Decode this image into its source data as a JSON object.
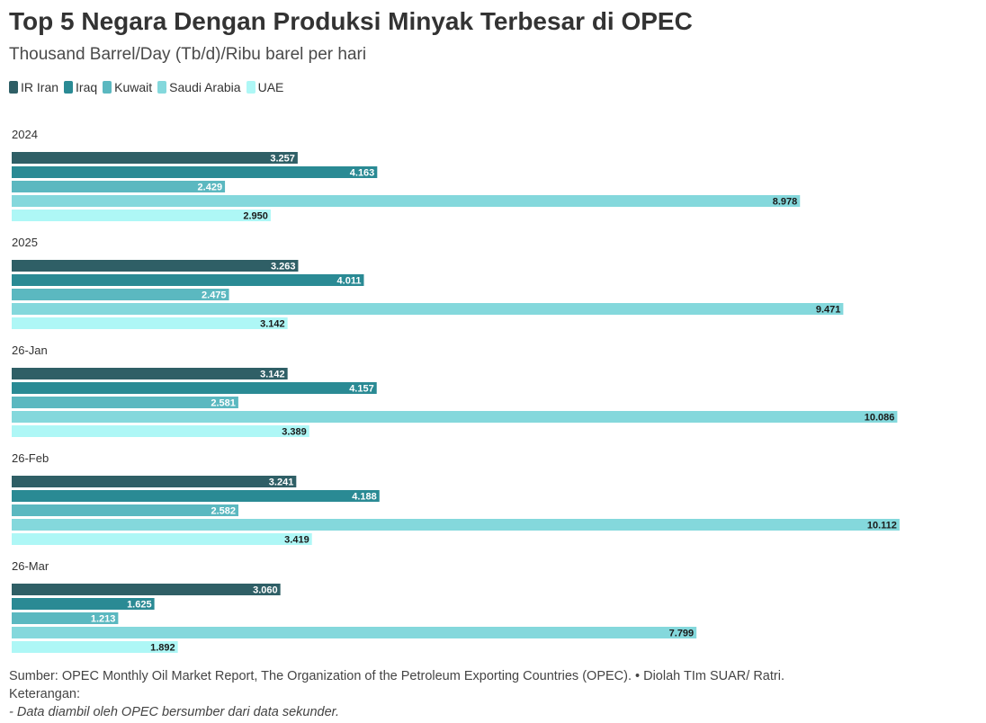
{
  "header": {
    "title": "Top 5 Negara Dengan Produksi Minyak Terbesar di OPEC",
    "subtitle": "Thousand Barrel/Day (Tb/d)/Ribu barel per hari"
  },
  "chart_data": {
    "type": "bar",
    "orientation": "horizontal",
    "title": "Top 5 Negara Dengan Produksi Minyak Terbesar di OPEC",
    "subtitle": "Thousand Barrel/Day (Tb/d)/Ribu barel per hari",
    "legend_position": "top-left",
    "grid": false,
    "xlim": [
      0,
      11
    ],
    "categories": [
      "2024",
      "2025",
      "26-Jan",
      "26-Feb",
      "26-Mar"
    ],
    "series": [
      {
        "name": "IR Iran",
        "color": "#2f5f66",
        "label_color": "#ffffff",
        "values": [
          3.257,
          3.263,
          3.142,
          3.241,
          3.06
        ],
        "labels": [
          "3.257",
          "3.263",
          "3.142",
          "3.241",
          "3.060"
        ]
      },
      {
        "name": "Iraq",
        "color": "#2a8a94",
        "label_color": "#ffffff",
        "values": [
          4.163,
          4.011,
          4.157,
          4.188,
          1.625
        ],
        "labels": [
          "4.163",
          "4.011",
          "4.157",
          "4.188",
          "1.625"
        ]
      },
      {
        "name": "Kuwait",
        "color": "#5bb8c0",
        "label_color": "#ffffff",
        "values": [
          2.429,
          2.475,
          2.581,
          2.582,
          1.213
        ],
        "labels": [
          "2.429",
          "2.475",
          "2.581",
          "2.582",
          "1.213"
        ]
      },
      {
        "name": "Saudi Arabia",
        "color": "#84d8dc",
        "label_color": "#1a1a1a",
        "values": [
          8.978,
          9.471,
          10.086,
          10.112,
          7.799
        ],
        "labels": [
          "8.978",
          "9.471",
          "10.086",
          "10.112",
          "7.799"
        ]
      },
      {
        "name": "UAE",
        "color": "#aef7f6",
        "label_color": "#1a1a1a",
        "values": [
          2.95,
          3.142,
          3.389,
          3.419,
          1.892
        ],
        "labels": [
          "2.950",
          "3.142",
          "3.389",
          "3.419",
          "1.892"
        ]
      }
    ]
  },
  "footer": {
    "source": "Sumber: OPEC Monthly Oil Market Report, The Organization of the Petroleum Exporting Countries (OPEC). • Diolah TIm SUAR/ Ratri.",
    "notes_label": "Keterangan:",
    "note": "- Data diambil oleh OPEC bersumber dari data sekunder."
  }
}
